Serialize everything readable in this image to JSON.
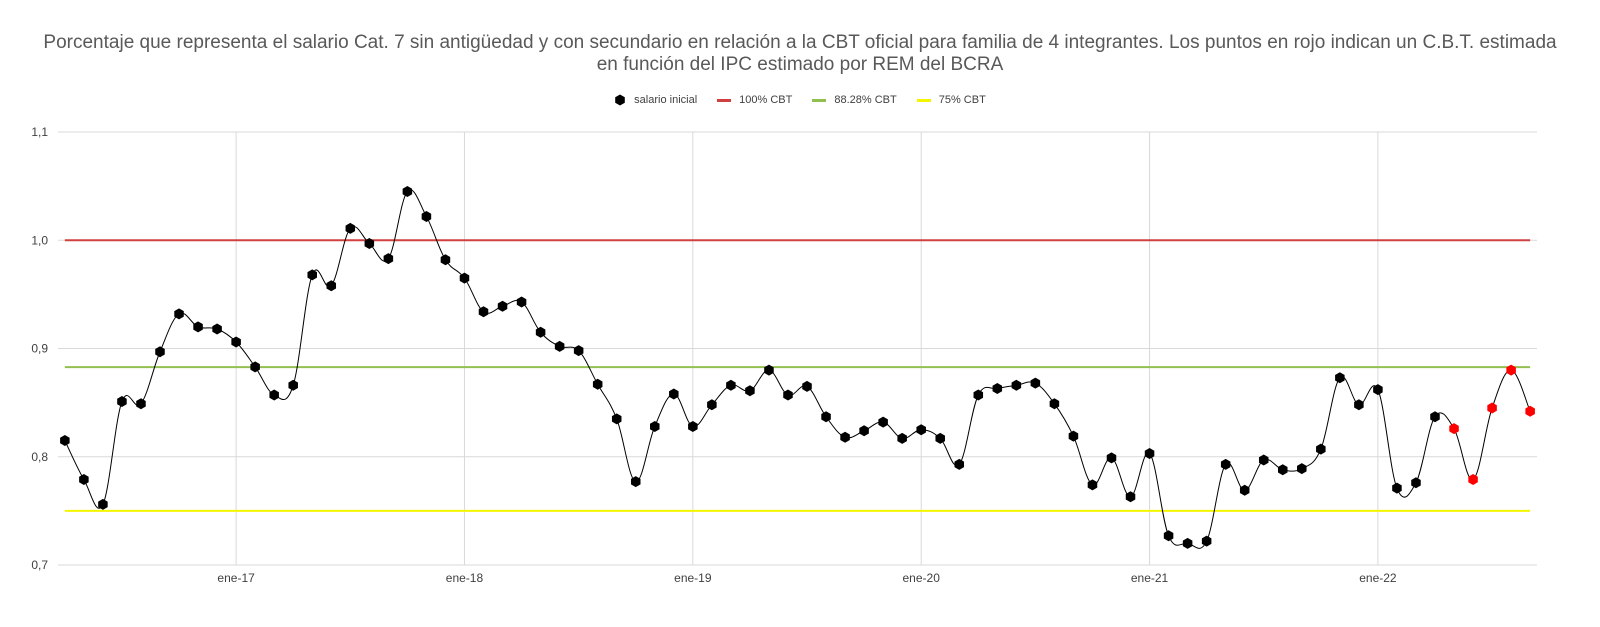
{
  "chart_data": {
    "type": "line",
    "title": "Porcentaje que representa el salario Cat. 7 sin antigüedad y con secundario en relación a la CBT oficial para familia de 4 integrantes. Los puntos en rojo indican un C.B.T. estimada en función del IPC estimado por REM del BCRA",
    "xlabel": "",
    "ylabel": "",
    "ylim": [
      0.7,
      1.1
    ],
    "y_ticks": [
      "0,7",
      "0,8",
      "0,9",
      "1,0",
      "1,1"
    ],
    "y_tick_values": [
      0.7,
      0.8,
      0.9,
      1.0,
      1.1
    ],
    "x_ticks": [
      "ene-17",
      "ene-18",
      "ene-19",
      "ene-20",
      "ene-21",
      "ene-22"
    ],
    "x_tick_months": [
      2017.0,
      2018.0,
      2019.0,
      2020.0,
      2021.0,
      2022.0
    ],
    "x_start": "2016-04",
    "x_end": "2022-09",
    "grid": true,
    "legend_position": "top",
    "series": [
      {
        "name": "salario inicial",
        "color": "#000000",
        "estimated_color": "#ff0000",
        "x": [
          "2016-04",
          "2016-05",
          "2016-06",
          "2016-07",
          "2016-08",
          "2016-09",
          "2016-10",
          "2016-11",
          "2016-12",
          "2017-01",
          "2017-02",
          "2017-03",
          "2017-04",
          "2017-05",
          "2017-06",
          "2017-07",
          "2017-08",
          "2017-09",
          "2017-10",
          "2017-11",
          "2017-12",
          "2018-01",
          "2018-02",
          "2018-03",
          "2018-04",
          "2018-05",
          "2018-06",
          "2018-07",
          "2018-08",
          "2018-09",
          "2018-10",
          "2018-11",
          "2018-12",
          "2019-01",
          "2019-02",
          "2019-03",
          "2019-04",
          "2019-05",
          "2019-06",
          "2019-07",
          "2019-08",
          "2019-09",
          "2019-10",
          "2019-11",
          "2019-12",
          "2020-01",
          "2020-02",
          "2020-03",
          "2020-04",
          "2020-05",
          "2020-06",
          "2020-07",
          "2020-08",
          "2020-09",
          "2020-10",
          "2020-11",
          "2020-12",
          "2021-01",
          "2021-02",
          "2021-03",
          "2021-04",
          "2021-05",
          "2021-06",
          "2021-07",
          "2021-08",
          "2021-09",
          "2021-10",
          "2021-11",
          "2021-12",
          "2022-01",
          "2022-02",
          "2022-03",
          "2022-04",
          "2022-05",
          "2022-06",
          "2022-07",
          "2022-08",
          "2022-09"
        ],
        "values": [
          0.815,
          0.779,
          0.756,
          0.851,
          0.849,
          0.897,
          0.932,
          0.92,
          0.918,
          0.906,
          0.883,
          0.857,
          0.866,
          0.968,
          0.958,
          1.011,
          0.997,
          0.983,
          1.045,
          1.022,
          0.982,
          0.965,
          0.934,
          0.939,
          0.943,
          0.915,
          0.902,
          0.898,
          0.867,
          0.835,
          0.777,
          0.828,
          0.858,
          0.828,
          0.848,
          0.866,
          0.861,
          0.88,
          0.857,
          0.865,
          0.837,
          0.818,
          0.824,
          0.832,
          0.817,
          0.825,
          0.817,
          0.793,
          0.857,
          0.863,
          0.866,
          0.868,
          0.849,
          0.819,
          0.774,
          0.799,
          0.763,
          0.803,
          0.727,
          0.72,
          0.722,
          0.793,
          0.769,
          0.797,
          0.788,
          0.789,
          0.807,
          0.873,
          0.848,
          0.862,
          0.771,
          0.776,
          0.837,
          0.826,
          0.779,
          0.845,
          0.88,
          0.842
        ],
        "estimated": [
          false,
          false,
          false,
          false,
          false,
          false,
          false,
          false,
          false,
          false,
          false,
          false,
          false,
          false,
          false,
          false,
          false,
          false,
          false,
          false,
          false,
          false,
          false,
          false,
          false,
          false,
          false,
          false,
          false,
          false,
          false,
          false,
          false,
          false,
          false,
          false,
          false,
          false,
          false,
          false,
          false,
          false,
          false,
          false,
          false,
          false,
          false,
          false,
          false,
          false,
          false,
          false,
          false,
          false,
          false,
          false,
          false,
          false,
          false,
          false,
          false,
          false,
          false,
          false,
          false,
          false,
          false,
          false,
          false,
          false,
          false,
          false,
          false,
          true,
          true,
          true,
          true,
          true
        ]
      },
      {
        "name": "100% CBT",
        "color": "#d04040",
        "value": 1.0
      },
      {
        "name": "88.28% CBT",
        "color": "#92c050",
        "value": 0.8828
      },
      {
        "name": "75% CBT",
        "color": "#f5f500",
        "value": 0.75
      }
    ]
  }
}
